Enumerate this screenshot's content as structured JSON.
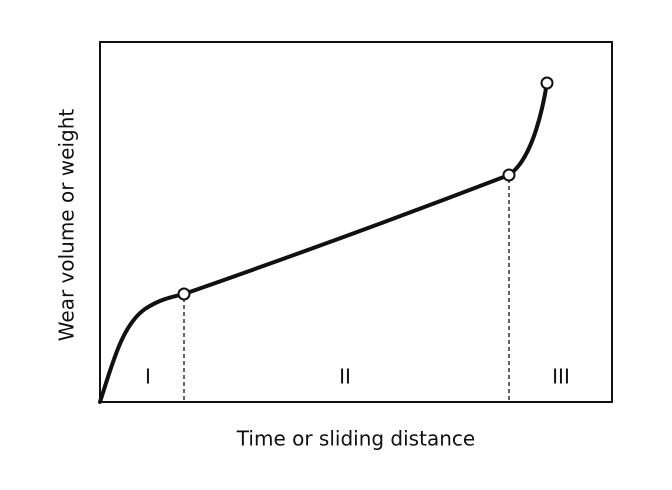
{
  "axes": {
    "x_label": "Time or sliding distance",
    "y_label": "Wear volume or weight"
  },
  "regions": [
    "I",
    "II",
    "III"
  ]
}
